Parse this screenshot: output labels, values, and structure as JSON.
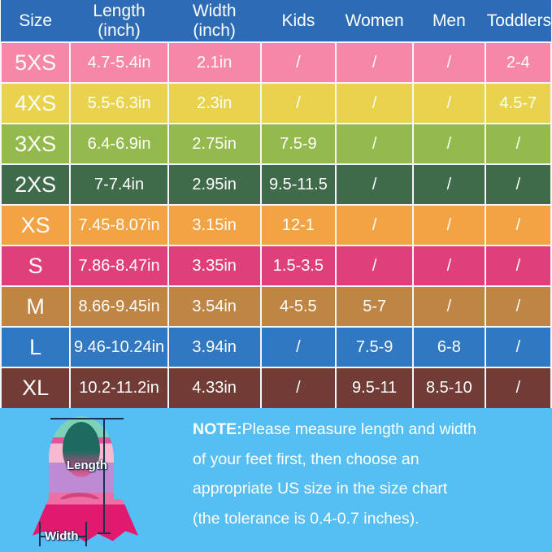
{
  "table": {
    "header": [
      {
        "label": "Size",
        "sub": ""
      },
      {
        "label": "Length",
        "sub": "(inch)"
      },
      {
        "label": "Width",
        "sub": "(inch)"
      },
      {
        "label": "Kids",
        "sub": ""
      },
      {
        "label": "Women",
        "sub": ""
      },
      {
        "label": "Men",
        "sub": ""
      },
      {
        "label": "Toddlers",
        "sub": ""
      }
    ],
    "header_bg": "#2d6cb5",
    "divider_color": "#f7f7fb",
    "rows": [
      {
        "size": "5XS",
        "color": "#f687a6",
        "length": "4.7-5.4in",
        "width": "2.1in",
        "kids": "/",
        "women": "/",
        "men": "/",
        "toddlers": "2-4"
      },
      {
        "size": "4XS",
        "color": "#e9d24d",
        "length": "5.5-6.3in",
        "width": "2.3in",
        "kids": "/",
        "women": "/",
        "men": "/",
        "toddlers": "4.5-7"
      },
      {
        "size": "3XS",
        "color": "#94ba4d",
        "length": "6.4-6.9in",
        "width": "2.75in",
        "kids": "7.5-9",
        "women": "/",
        "men": "/",
        "toddlers": "/"
      },
      {
        "size": "2XS",
        "color": "#3f6b4a",
        "length": "7-7.4in",
        "width": "2.95in",
        "kids": "9.5-11.5",
        "women": "/",
        "men": "/",
        "toddlers": "/"
      },
      {
        "size": "XS",
        "color": "#f2a444",
        "length": "7.45-8.07in",
        "width": "3.15in",
        "kids": "12-1",
        "women": "/",
        "men": "/",
        "toddlers": "/"
      },
      {
        "size": "S",
        "color": "#e04079",
        "length": "7.86-8.47in",
        "width": "3.35in",
        "kids": "1.5-3.5",
        "women": "/",
        "men": "/",
        "toddlers": "/"
      },
      {
        "size": "M",
        "color": "#bf8544",
        "length": "8.66-9.45in",
        "width": "3.54in",
        "kids": "4-5.5",
        "women": "5-7",
        "men": "/",
        "toddlers": "/"
      },
      {
        "size": "L",
        "color": "#3078c2",
        "length": "9.46-10.24in",
        "width": "3.94in",
        "kids": "/",
        "women": "7.5-9",
        "men": "6-8",
        "toddlers": "/"
      },
      {
        "size": "XL",
        "color": "#703c35",
        "length": "10.2-11.2in",
        "width": "4.33in",
        "kids": "/",
        "women": "9.5-11",
        "men": "8.5-10",
        "toddlers": "/"
      }
    ]
  },
  "footer": {
    "bg": "#55bef2",
    "note": {
      "label": "NOTE:",
      "line1": "Please measure length and width",
      "line2": "of your feet first, then choose an",
      "line3": "appropriate US size in the size chart",
      "line4": "(the tolerance is 0.4-0.7 inches)."
    },
    "fin": {
      "length_label": "Length",
      "width_label": "Width",
      "colors": {
        "mint": "#7ed0b8",
        "rose": "#e0559a",
        "lightpink": "#f6b9cf",
        "lavender": "#bf8ad4",
        "pink": "#ed6fa5",
        "magenta": "#e01a6e"
      }
    }
  }
}
